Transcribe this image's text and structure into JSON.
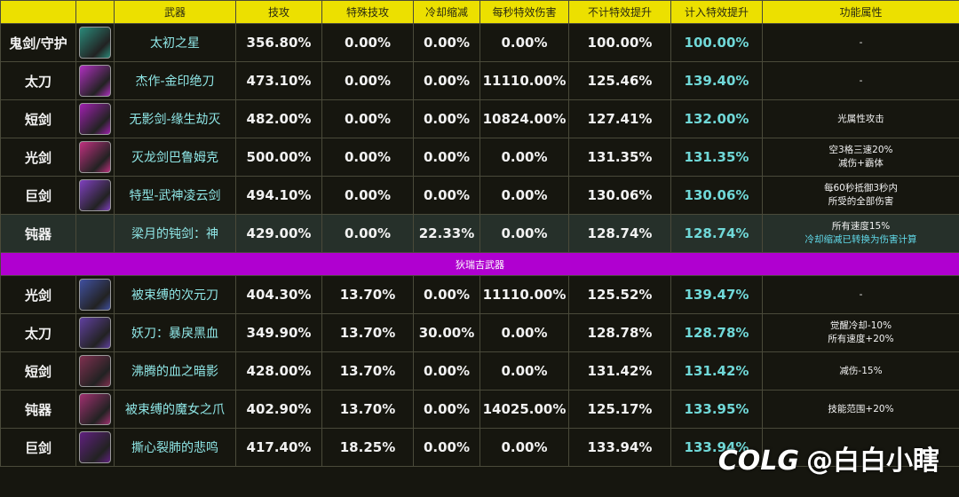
{
  "header": {
    "columns": [
      "武器",
      "技攻",
      "特殊技攻",
      "冷却缩减",
      "每秒特效伤害",
      "不计特效提升",
      "计入特效提升",
      "功能属性"
    ]
  },
  "groups": [
    {
      "rows": [
        {
          "type": "鬼剑/守护",
          "weapon": "太初之星",
          "stats": [
            "356.80%",
            "0.00%",
            "0.00%",
            "0.00%",
            "100.00%",
            "100.00%"
          ],
          "notes": [
            "-"
          ]
        },
        {
          "type": "太刀",
          "weapon": "杰作-金印绝刀",
          "stats": [
            "473.10%",
            "0.00%",
            "0.00%",
            "11110.00%",
            "125.46%",
            "139.40%"
          ],
          "notes": [
            "-"
          ]
        },
        {
          "type": "短剑",
          "weapon": "无影剑-缘生劫灭",
          "stats": [
            "482.00%",
            "0.00%",
            "0.00%",
            "10824.00%",
            "127.41%",
            "132.00%"
          ],
          "notes": [
            "光属性攻击"
          ]
        },
        {
          "type": "光剑",
          "weapon": "灭龙剑巴鲁姆克",
          "stats": [
            "500.00%",
            "0.00%",
            "0.00%",
            "0.00%",
            "131.35%",
            "131.35%"
          ],
          "notes": [
            "空3格三速20%",
            "减伤+霸体"
          ]
        },
        {
          "type": "巨剑",
          "weapon": "特型-武神凌云剑",
          "stats": [
            "494.10%",
            "0.00%",
            "0.00%",
            "0.00%",
            "130.06%",
            "130.06%"
          ],
          "notes": [
            "每60秒抵御3秒内",
            "所受的全部伤害"
          ]
        },
        {
          "type": "钝器",
          "weapon": "梁月的钝剑：神",
          "stats": [
            "429.00%",
            "0.00%",
            "22.33%",
            "0.00%",
            "128.74%",
            "128.74%"
          ],
          "notes": [
            "所有速度15%",
            "冷却缩减已转换为伤害计算"
          ]
        }
      ]
    },
    {
      "title": "狄瑞吉武器",
      "rows": [
        {
          "type": "光剑",
          "weapon": "被束缚的次元刀",
          "stats": [
            "404.30%",
            "13.70%",
            "0.00%",
            "11110.00%",
            "125.52%",
            "139.47%"
          ],
          "notes": [
            "-"
          ]
        },
        {
          "type": "太刀",
          "weapon": "妖刀：暴戾黑血",
          "stats": [
            "349.90%",
            "13.70%",
            "30.00%",
            "0.00%",
            "128.78%",
            "128.78%"
          ],
          "notes": [
            "觉醒冷却-10%",
            "所有速度+20%"
          ]
        },
        {
          "type": "短剑",
          "weapon": "沸腾的血之暗影",
          "stats": [
            "428.00%",
            "13.70%",
            "0.00%",
            "0.00%",
            "131.42%",
            "131.42%"
          ],
          "notes": [
            "减伤-15%"
          ]
        },
        {
          "type": "钝器",
          "weapon": "被束缚的魔女之爪",
          "stats": [
            "402.90%",
            "13.70%",
            "0.00%",
            "14025.00%",
            "125.17%",
            "133.95%"
          ],
          "notes": [
            "技能范围+20%"
          ]
        },
        {
          "type": "巨剑",
          "weapon": "撕心裂肺的悲鸣",
          "stats": [
            "417.40%",
            "18.25%",
            "0.00%",
            "0.00%",
            "133.94%",
            "133.94%"
          ],
          "notes": []
        }
      ]
    }
  ],
  "watermark": {
    "logo": "COLG",
    "author": "@白白小瞎"
  }
}
